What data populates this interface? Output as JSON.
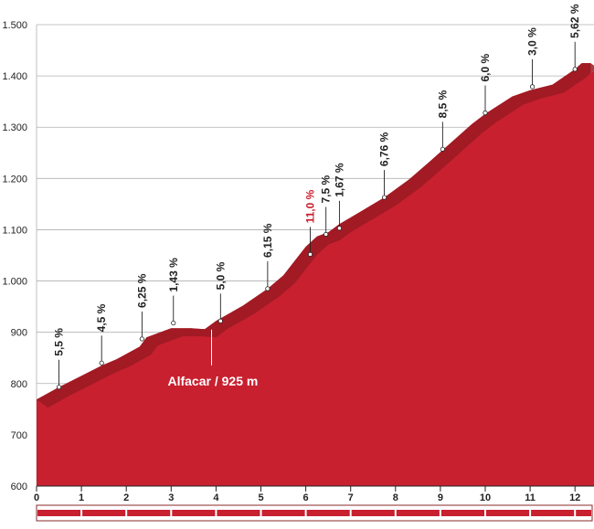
{
  "chart_data": {
    "type": "area",
    "x": [
      0,
      0.5,
      1.0,
      1.45,
      1.8,
      2.3,
      2.45,
      3.0,
      3.45,
      3.58,
      3.75,
      4.0,
      4.6,
      5.15,
      5.5,
      6.0,
      6.25,
      6.5,
      6.75,
      7.25,
      7.75,
      8.3,
      8.75,
      9.2,
      9.7,
      10.0,
      10.6,
      11.0,
      11.5,
      12.0,
      12.15,
      12.35
    ],
    "elevation": [
      769,
      793,
      815,
      835,
      848,
      872,
      890,
      908,
      908,
      907,
      906,
      922,
      952,
      985,
      1011,
      1067,
      1087,
      1095,
      1111,
      1137,
      1163,
      1198,
      1232,
      1267,
      1306,
      1326,
      1360,
      1372,
      1383,
      1413,
      1425,
      1425
    ],
    "ylim": [
      600,
      1500
    ],
    "xlim": [
      0,
      12.35
    ],
    "yticks": [
      "600",
      "700",
      "800",
      "900",
      "1.000",
      "1.100",
      "1.200",
      "1.300",
      "1.400",
      "1.500"
    ],
    "xticks": [
      "0",
      "1",
      "2",
      "3",
      "4",
      "5",
      "6",
      "7",
      "8",
      "9",
      "10",
      "11",
      "12"
    ],
    "gradient_labels": [
      {
        "km": 0.5,
        "elev": 793,
        "text": "5,5 %",
        "highlight": false
      },
      {
        "km": 1.45,
        "elev": 840,
        "text": "4,5 %",
        "highlight": false
      },
      {
        "km": 2.35,
        "elev": 887,
        "text": "6,25 %",
        "highlight": false
      },
      {
        "km": 3.05,
        "elev": 918,
        "text": "1,43 %",
        "highlight": false
      },
      {
        "km": 4.1,
        "elev": 922,
        "text": "5,0 %",
        "highlight": false
      },
      {
        "km": 5.15,
        "elev": 985,
        "text": "6,15 %",
        "highlight": false
      },
      {
        "km": 6.1,
        "elev": 1052,
        "text": "11,0 %",
        "highlight": true
      },
      {
        "km": 6.45,
        "elev": 1091,
        "text": "7,5 %",
        "highlight": false
      },
      {
        "km": 6.75,
        "elev": 1103,
        "text": "1,67 %",
        "highlight": false
      },
      {
        "km": 7.75,
        "elev": 1163,
        "text": "6,76 %",
        "highlight": false
      },
      {
        "km": 9.05,
        "elev": 1257,
        "text": "8,5 %",
        "highlight": false
      },
      {
        "km": 10.0,
        "elev": 1328,
        "text": "6,0 %",
        "highlight": false
      },
      {
        "km": 11.05,
        "elev": 1379,
        "text": "3,0 %",
        "highlight": false
      },
      {
        "km": 12.0,
        "elev": 1413,
        "text": "5,62 %",
        "highlight": false
      }
    ],
    "annotation": {
      "text": "Alfacar / 925 m",
      "km": 3.9
    },
    "colors": {
      "fill": "#c8202f",
      "ridge": "#9a1a22",
      "highlight": "#c8202f",
      "grid": "#b0b0b0"
    }
  }
}
